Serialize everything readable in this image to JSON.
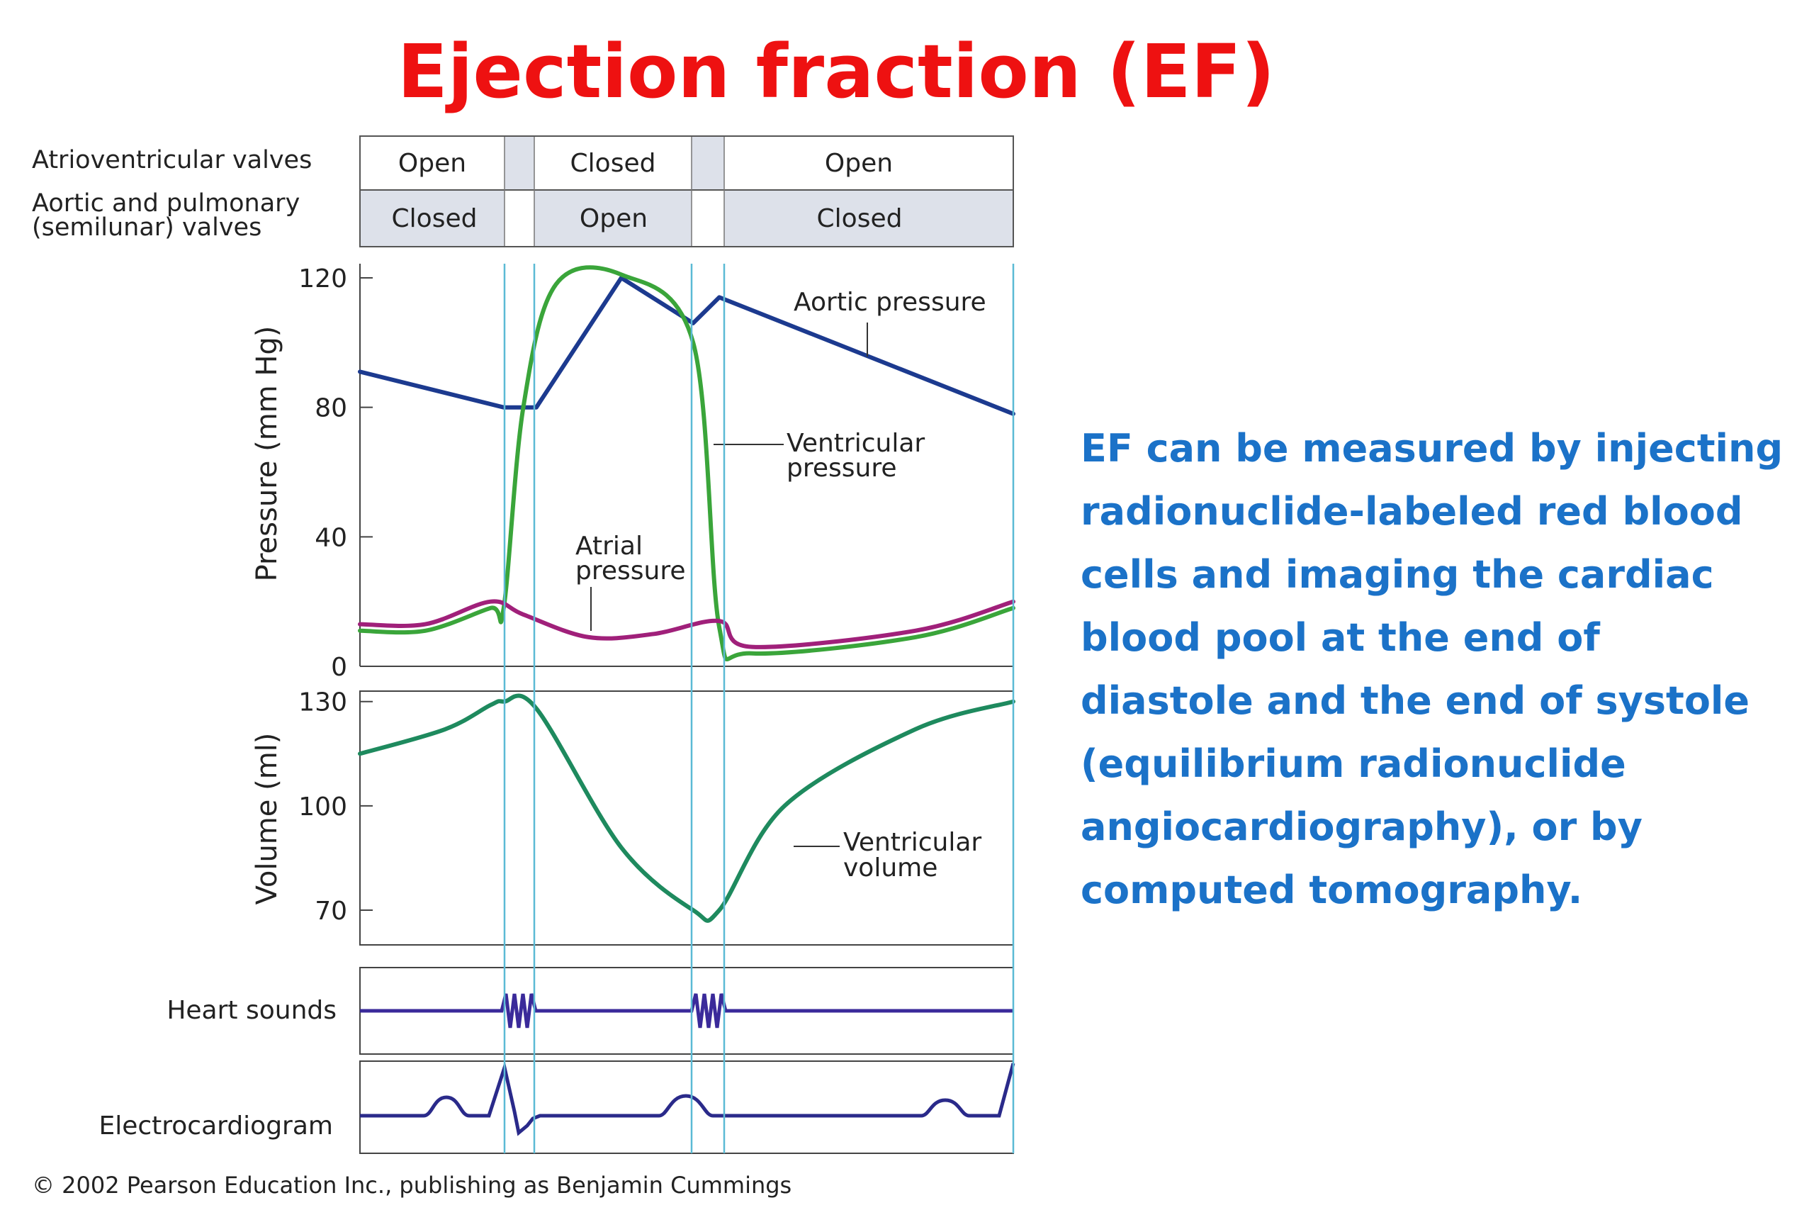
{
  "title": "Ejection fraction (EF)",
  "valves": {
    "av_label": "Atrioventricular valves",
    "semilunar_label_line1": "Aortic and pulmonary",
    "semilunar_label_line2": "(semilunar) valves",
    "av_states": [
      "Open",
      "Closed",
      "Open"
    ],
    "semilunar_states": [
      "Closed",
      "Open",
      "Closed"
    ]
  },
  "colors": {
    "aortic": "#1c3a8f",
    "ventricular": "#3aa53a",
    "atrial": "#a0207a",
    "volume": "#1e8a5e",
    "sounds": "#3a2a9a",
    "phase_lines": "#5bbad5",
    "title": "#ee1111",
    "text_blue": "#1b72c8"
  },
  "chart_data": [
    {
      "type": "line",
      "ylabel": "Pressure (mm Hg)",
      "ylim": [
        0,
        120
      ],
      "yticks": [
        0,
        40,
        80,
        120
      ],
      "series": [
        {
          "name": "Aortic pressure",
          "x": [
            0,
            0.22,
            0.27,
            0.4,
            0.51,
            0.55,
            1.0
          ],
          "y": [
            91,
            80,
            80,
            120,
            106,
            114,
            78
          ]
        },
        {
          "name": "Ventricular pressure",
          "x": [
            0,
            0.1,
            0.2,
            0.22,
            0.25,
            0.3,
            0.4,
            0.51,
            0.55,
            0.6,
            0.85,
            1.0
          ],
          "y": [
            11,
            11,
            18,
            18,
            80,
            118,
            121,
            100,
            12,
            4,
            9,
            18
          ]
        },
        {
          "name": "Atrial pressure",
          "x": [
            0,
            0.1,
            0.2,
            0.25,
            0.35,
            0.45,
            0.55,
            0.6,
            0.85,
            1.0
          ],
          "y": [
            13,
            13,
            20,
            16,
            9,
            10,
            14,
            6,
            11,
            20
          ]
        }
      ],
      "annotations": {
        "aortic": "Aortic pressure",
        "ventricular_line1": "Ventricular",
        "ventricular_line2": "pressure",
        "atrial_line1": "Atrial",
        "atrial_line2": "pressure"
      }
    },
    {
      "type": "line",
      "ylabel": "Volume (ml)",
      "ylim": [
        60,
        133
      ],
      "yticks": [
        70,
        100,
        130
      ],
      "series": [
        {
          "name": "Ventricular volume",
          "x": [
            0,
            0.13,
            0.2,
            0.22,
            0.27,
            0.4,
            0.51,
            0.55,
            0.65,
            0.85,
            1.0
          ],
          "y": [
            115,
            122,
            129,
            130,
            128,
            88,
            70,
            70,
            100,
            122,
            130
          ]
        }
      ],
      "annotations": {
        "volume_line1": "Ventricular",
        "volume_line2": "volume"
      }
    }
  ],
  "heart_sounds_label": "Heart sounds",
  "ecg_label": "Electrocardiogram",
  "copyright": "© 2002 Pearson Education Inc., publishing as Benjamin Cummings",
  "description_lines": [
    "EF can be measured by injecting",
    "radionuclide-labeled red blood",
    "cells and imaging the cardiac",
    "blood pool at the end of",
    "diastole and the end of systole",
    "(equilibrium radionuclide",
    "angiocardiography), or by",
    "computed tomography."
  ]
}
